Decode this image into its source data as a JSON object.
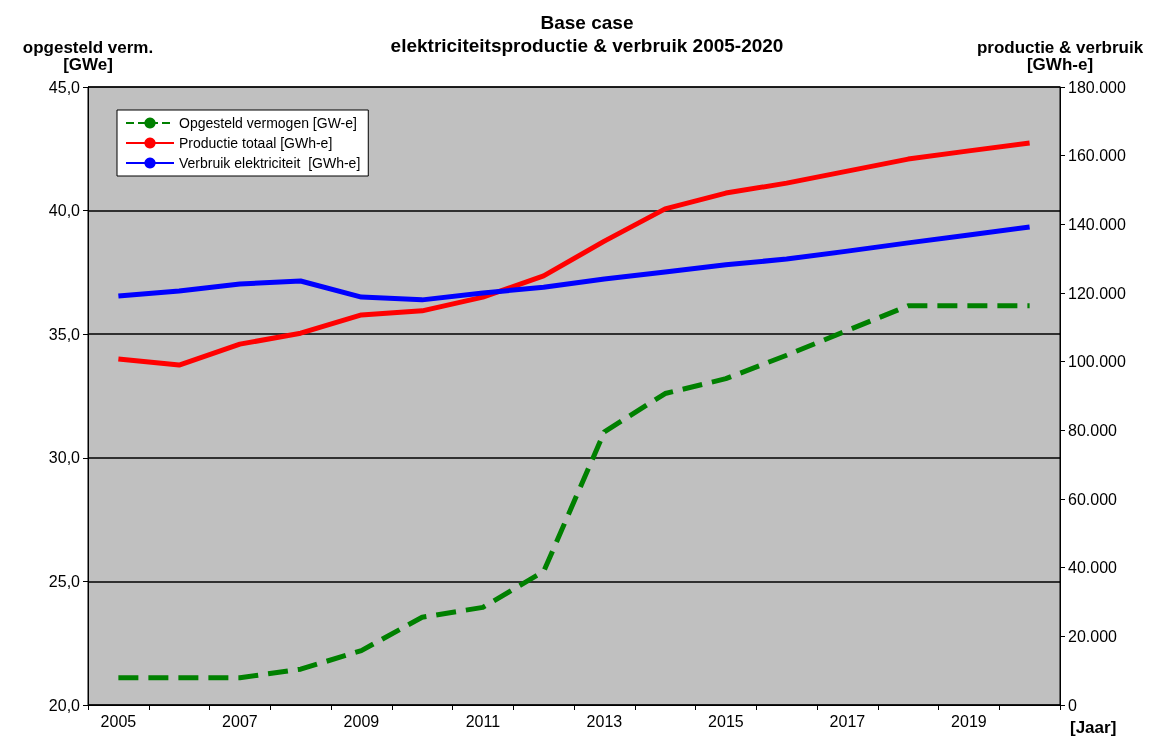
{
  "chart_data": {
    "type": "line",
    "title": "Base case",
    "subtitle": "elektriciteitsproductie & verbruik 2005-2020",
    "ylabel": "opgesteld verm.\n[GWe]",
    "y2label": "productie & verbruik\n[GWh-e]",
    "xlabel": "[Jaar]",
    "categories": [
      "2005",
      null,
      "2007",
      null,
      "2009",
      null,
      "2011",
      null,
      "2013",
      null,
      "2015",
      null,
      "2017",
      null,
      "2019",
      null
    ],
    "series": [
      {
        "name": "Opgesteld vermogen [GW-e]",
        "color": "#008000",
        "line_style": "dashed",
        "values": [
          21.1,
          21.1,
          21.1,
          21.45,
          22.2,
          23.55,
          23.95,
          25.4,
          31.05,
          32.6,
          33.2,
          34.15,
          35.15,
          36.15,
          36.15,
          36.15
        ]
      },
      {
        "name": "Productie totaal [GWh-e]",
        "color": "#ff0000",
        "axis": "y2",
        "line_style": "solid",
        "values": [
          100800,
          99000,
          105100,
          108300,
          113600,
          114800,
          118800,
          125000,
          135100,
          144500,
          149100,
          152000,
          155500,
          159000,
          161400,
          163700
        ]
      },
      {
        "name": "Verbruik elektriciteit  [GWh-e]",
        "color": "#0000ff",
        "axis": "y2",
        "line_style": "solid",
        "values": [
          119100,
          120600,
          122600,
          123500,
          118800,
          118000,
          120000,
          121700,
          124100,
          126100,
          128200,
          129900,
          132200,
          134600,
          136900,
          139200
        ]
      }
    ],
    "ylim": [
      20,
      45
    ],
    "yticks": [
      {
        "value": 20,
        "label": "20,0"
      },
      {
        "value": 25,
        "label": "25,0"
      },
      {
        "value": 30,
        "label": "30,0"
      },
      {
        "value": 35,
        "label": "35,0"
      },
      {
        "value": 40,
        "label": "40,0"
      },
      {
        "value": 45,
        "label": "45,0"
      }
    ],
    "y2lim": [
      0,
      180000
    ],
    "y2ticks": [
      0,
      {
        "value": 20000,
        "label": "20.000"
      },
      {
        "value": 40000,
        "label": "40.000"
      },
      {
        "value": 60000,
        "label": "60.000"
      },
      {
        "value": 80000,
        "label": "80.000"
      },
      {
        "value": 100000,
        "label": "100.000"
      },
      {
        "value": 120000,
        "label": "120.000"
      },
      {
        "value": 140000,
        "label": "140.000"
      },
      {
        "value": 160000,
        "label": "160.000"
      },
      {
        "value": 180000,
        "label": "180.000"
      }
    ],
    "grid": "y",
    "legend": "top left",
    "marker": "none"
  }
}
